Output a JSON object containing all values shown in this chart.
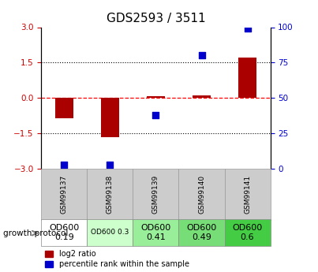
{
  "title": "GDS2593 / 3511",
  "samples": [
    "GSM99137",
    "GSM99138",
    "GSM99139",
    "GSM99140",
    "GSM99141"
  ],
  "log2_ratio": [
    -0.85,
    -1.65,
    0.07,
    0.12,
    1.7
  ],
  "percentile_rank": [
    3,
    3,
    38,
    80,
    99
  ],
  "ylim_left": [
    -3,
    3
  ],
  "ylim_right": [
    0,
    100
  ],
  "yticks_left": [
    -3,
    -1.5,
    0,
    1.5,
    3
  ],
  "yticks_right": [
    0,
    25,
    50,
    75,
    100
  ],
  "bar_color": "#aa0000",
  "scatter_color": "#0000cc",
  "growth_protocol_labels": [
    "OD600\n0.19",
    "OD600 0.3",
    "OD600\n0.41",
    "OD600\n0.49",
    "OD600\n0.6"
  ],
  "growth_protocol_colors": [
    "#ffffff",
    "#ccffcc",
    "#99ee99",
    "#77dd77",
    "#44cc44"
  ],
  "growth_protocol_fontsizes": [
    8,
    6.5,
    8,
    8,
    8
  ],
  "legend_red_label": "log2 ratio",
  "legend_blue_label": "percentile rank within the sample",
  "bar_width": 0.4,
  "scatter_size": 35,
  "left_tick_color": "#cc0000",
  "right_tick_color": "#0000cc"
}
